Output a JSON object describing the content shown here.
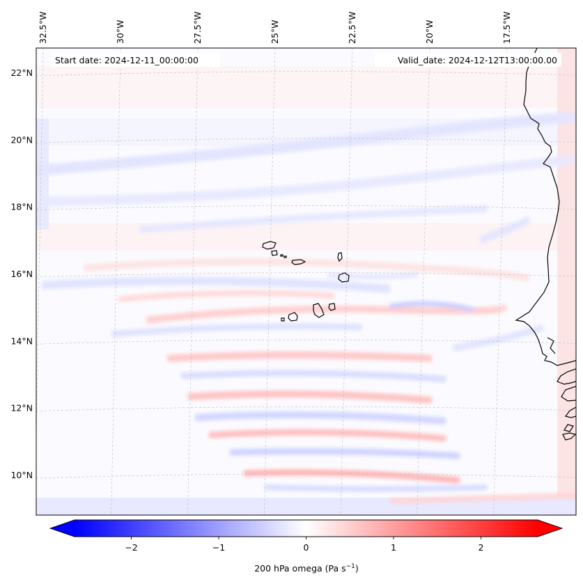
{
  "map": {
    "info_left": "Start date: 2024-12-11_00:00:00",
    "info_right": "Valid_date: 2024-12-12T13:00:00.00",
    "lon_ticks": [
      {
        "value": -32.5,
        "label": "32.5°W"
      },
      {
        "value": -30.0,
        "label": "30°W"
      },
      {
        "value": -27.5,
        "label": "27.5°W"
      },
      {
        "value": -25.0,
        "label": "25°W"
      },
      {
        "value": -22.5,
        "label": "22.5°W"
      },
      {
        "value": -20.0,
        "label": "20°W"
      },
      {
        "value": -17.5,
        "label": "17.5°W"
      }
    ],
    "lat_ticks": [
      {
        "value": 22,
        "label": "22°N"
      },
      {
        "value": 20,
        "label": "20°N"
      },
      {
        "value": 18,
        "label": "18°N"
      },
      {
        "value": 16,
        "label": "16°N"
      },
      {
        "value": 14,
        "label": "14°N"
      },
      {
        "value": 12,
        "label": "12°N"
      },
      {
        "value": 10,
        "label": "10°N"
      }
    ],
    "field_name": "200 hPa omega",
    "grid_lines": true
  },
  "colorbar": {
    "label_prefix": "200 hPa omega (Pa s",
    "label_exp": "−1",
    "label_suffix": ")",
    "vmin": -2.65,
    "vmax": 2.65,
    "colormap": "bwr",
    "extend": "both",
    "ticks": [
      {
        "value": -2,
        "label": "−2"
      },
      {
        "value": -1,
        "label": "−1"
      },
      {
        "value": 0,
        "label": "0"
      },
      {
        "value": 1,
        "label": "1"
      },
      {
        "value": 2,
        "label": "2"
      }
    ]
  },
  "colors": {
    "min": "#0000ff",
    "mid": "#ffffff",
    "max": "#ff0000",
    "coastline": "#000000"
  }
}
